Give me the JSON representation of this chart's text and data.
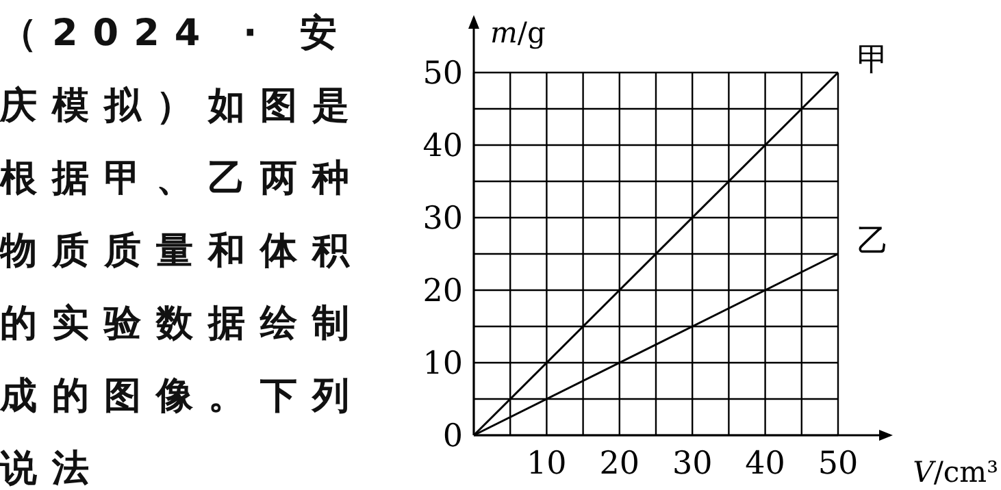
{
  "chart_data": {
    "type": "line",
    "xlabel": "V/cm³",
    "ylabel": "m/g",
    "annotations": [
      "（2024 · 安庆模拟）如图是根据甲、乙两种物质质量和体积的实验数据绘制成的图像。下列说法"
    ],
    "x": [
      0,
      50
    ],
    "series": [
      {
        "name": "甲",
        "color": "#000000",
        "values": [
          0,
          50
        ]
      },
      {
        "name": "乙",
        "color": "#000000",
        "values": [
          0,
          25
        ]
      }
    ],
    "xlim": [
      0,
      50
    ],
    "ylim": [
      0,
      50
    ],
    "xticks": [
      {
        "value": 0,
        "label": null
      },
      {
        "value": 5,
        "label": null
      },
      10,
      {
        "value": 15,
        "label": null
      },
      20,
      {
        "value": 25,
        "label": null
      },
      30,
      {
        "value": 35,
        "label": null
      },
      40,
      {
        "value": 45,
        "label": null
      },
      50
    ],
    "yticks": [
      0,
      {
        "value": 5,
        "label": null
      },
      10,
      {
        "value": 15,
        "label": null
      },
      20,
      {
        "value": 25,
        "label": null
      },
      30,
      {
        "value": 35,
        "label": null
      },
      40,
      {
        "value": 45,
        "label": null
      },
      50
    ],
    "grid": true,
    "marker": "none",
    "legend": false,
    "line_style": "solid"
  }
}
